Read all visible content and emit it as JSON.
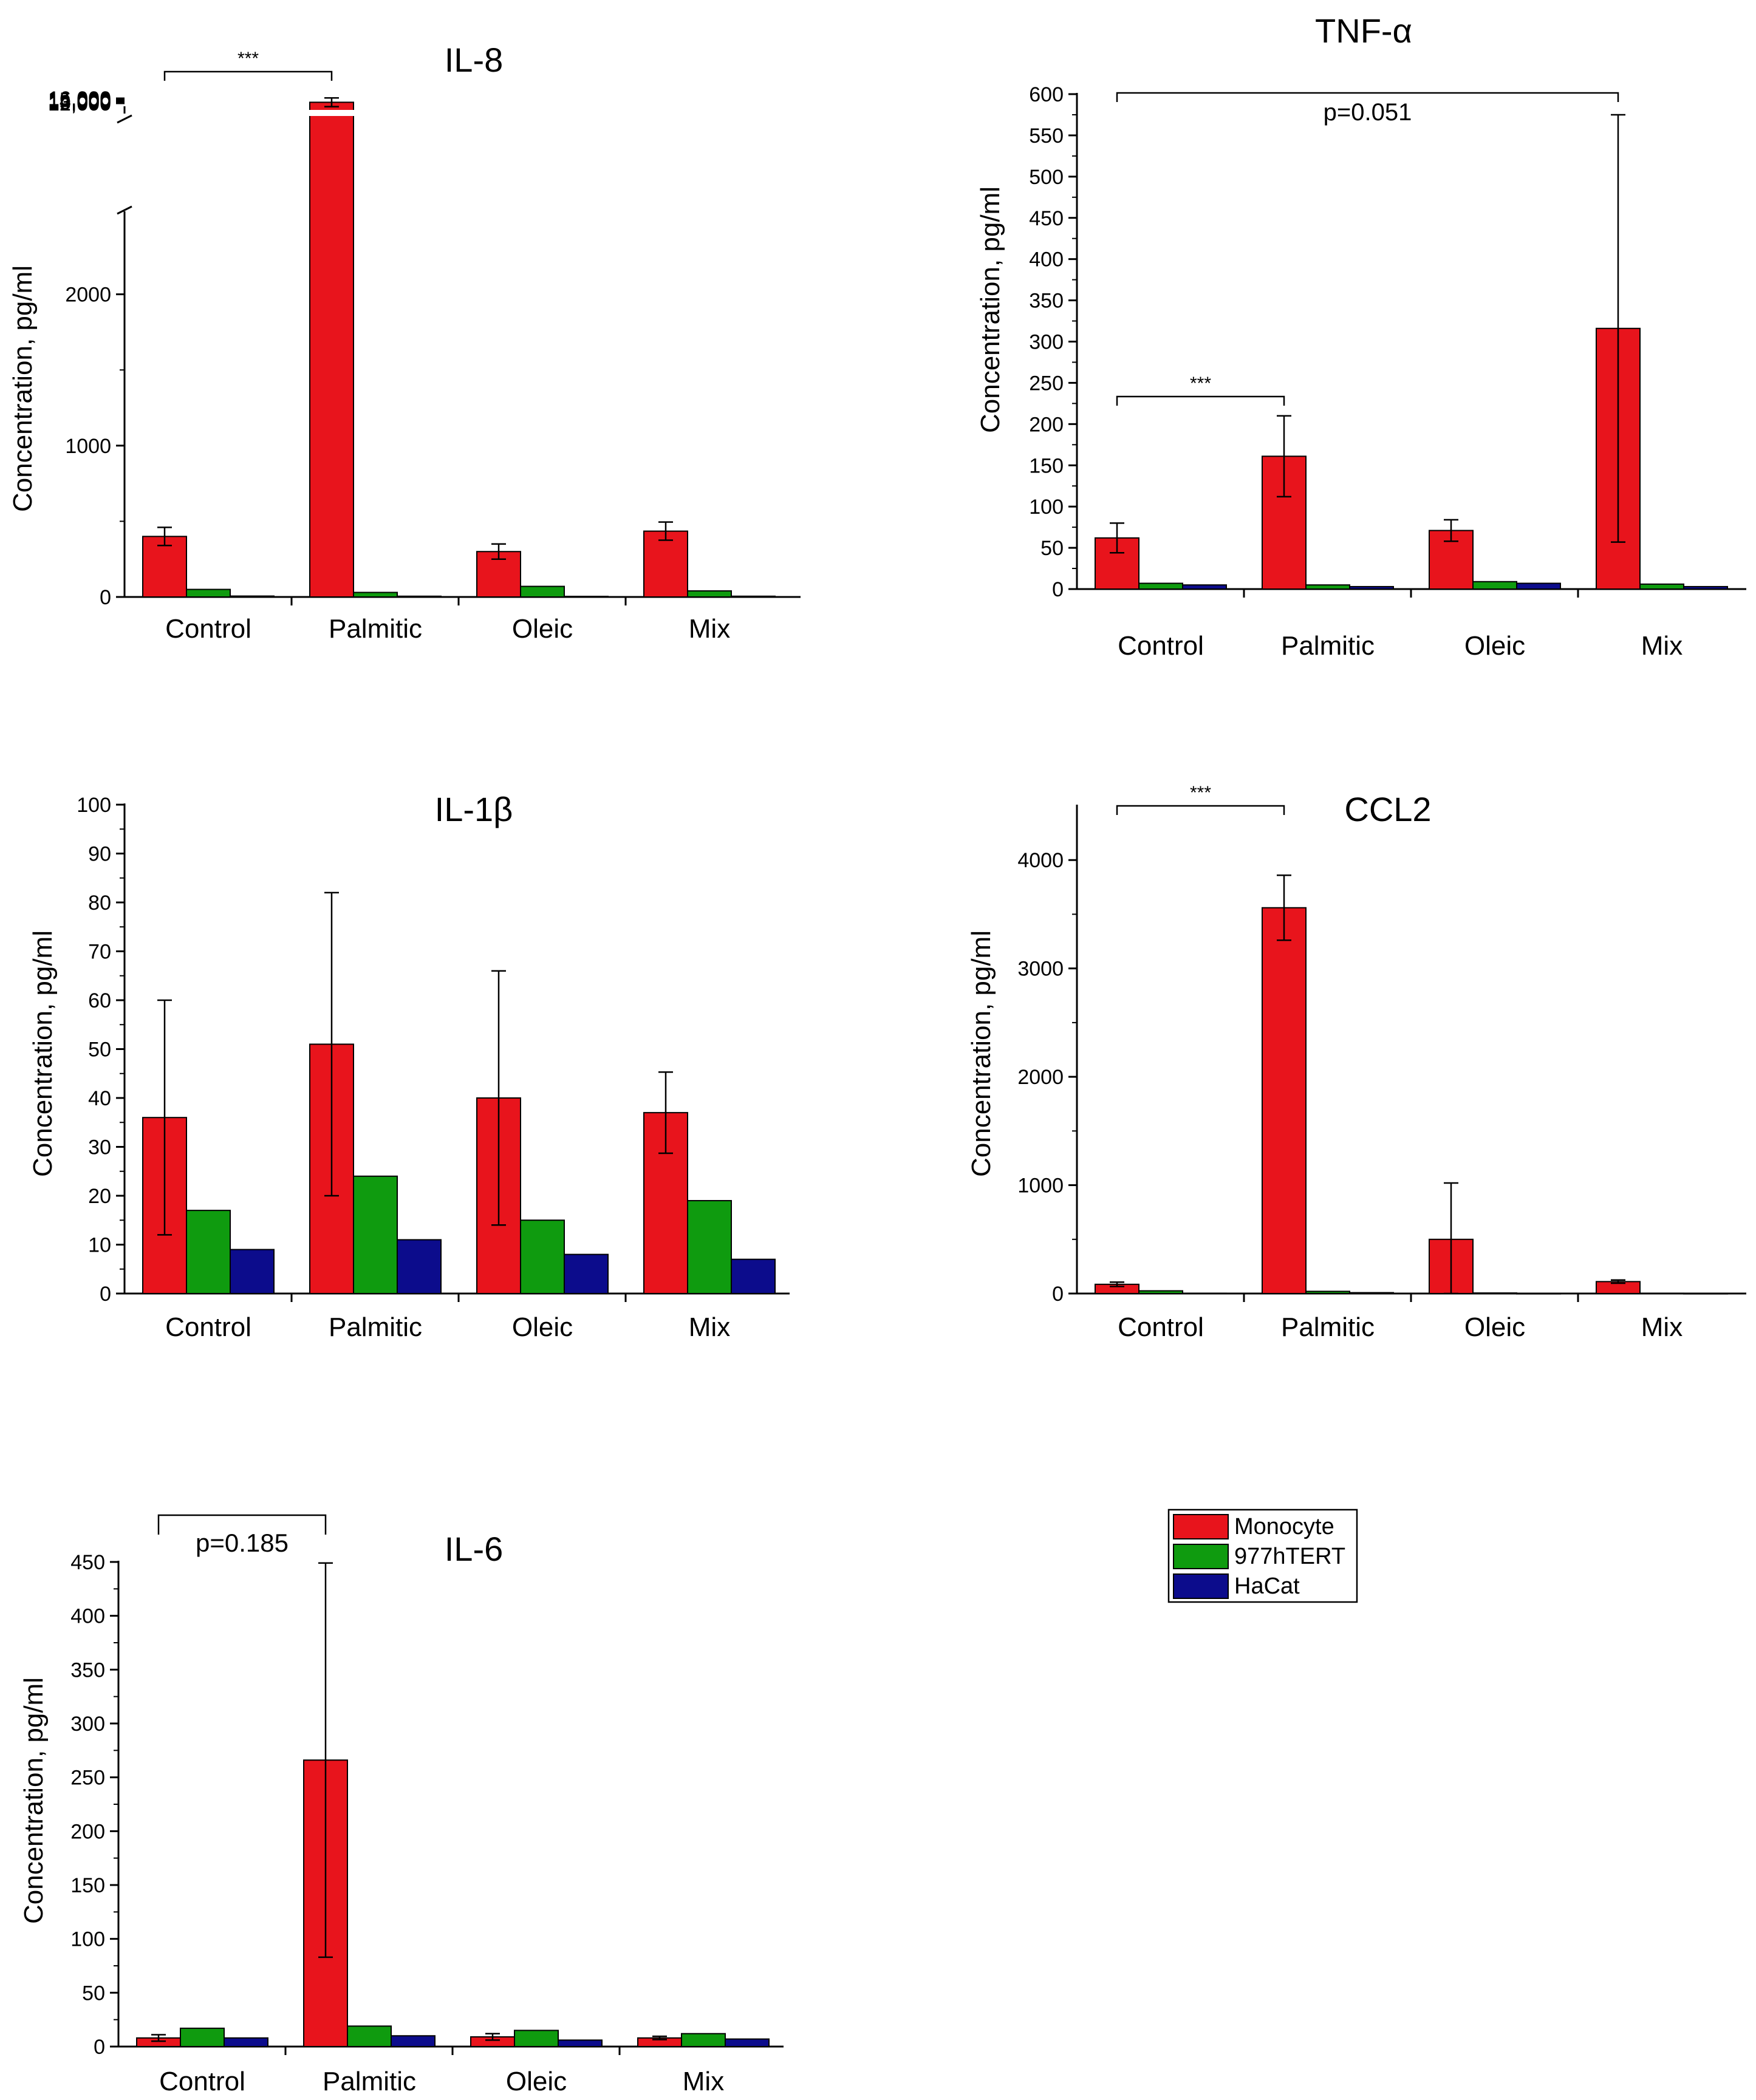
{
  "legend": {
    "items": [
      {
        "label": "Monocyte",
        "color": "#e8141c"
      },
      {
        "label": "977hTERT",
        "color": "#0f9b0f"
      },
      {
        "label": "HaCat",
        "color": "#0c0c8c"
      }
    ]
  },
  "chart_data": [
    {
      "type": "bar",
      "title": "IL-8",
      "ylabel": "Concentration, pg/ml",
      "categories": [
        "Control",
        "Palmitic",
        "Oleic",
        "Mix"
      ],
      "series": [
        {
          "name": "Monocyte",
          "values": [
            400,
            12800,
            300,
            435
          ],
          "errors": [
            60,
            3600,
            50,
            60
          ]
        },
        {
          "name": "977hTERT",
          "values": [
            50,
            30,
            70,
            40
          ]
        },
        {
          "name": "HaCat",
          "values": [
            6,
            5,
            4,
            5
          ]
        }
      ],
      "broken_axis": true,
      "ylim_lower": [
        0,
        2500
      ],
      "ylim_upper": [
        11000,
        17000
      ],
      "yticks_lower": [
        0,
        1000,
        2000
      ],
      "yticks_upper": [
        12000,
        13000,
        14000,
        15000,
        16000
      ],
      "ytick_labels_lower": [
        "0",
        "1000",
        "2000"
      ],
      "ytick_labels_upper": [
        "12,000",
        "13,000",
        "14,000",
        "15,000",
        "16,000"
      ],
      "significance": [
        {
          "from": "Control",
          "to": "Palmitic",
          "label": "***"
        }
      ]
    },
    {
      "type": "bar",
      "title": "TNF-α",
      "ylabel": "Concentration, pg/ml",
      "categories": [
        "Control",
        "Palmitic",
        "Oleic",
        "Mix"
      ],
      "series": [
        {
          "name": "Monocyte",
          "values": [
            62,
            161,
            71,
            316
          ],
          "errors": [
            18,
            49,
            13,
            259
          ]
        },
        {
          "name": "977hTERT",
          "values": [
            7,
            5,
            9,
            6
          ]
        },
        {
          "name": "HaCat",
          "values": [
            5,
            3,
            7,
            3
          ]
        }
      ],
      "ylim": [
        0,
        600
      ],
      "yticks": [
        0,
        50,
        100,
        150,
        200,
        250,
        300,
        350,
        400,
        450,
        500,
        550,
        600
      ],
      "significance": [
        {
          "from": "Control",
          "to": "Mix",
          "label": "p=0.051"
        },
        {
          "from": "Control",
          "to": "Palmitic",
          "label": "***"
        }
      ]
    },
    {
      "type": "bar",
      "title": "IL-1β",
      "ylabel": "Concentration, pg/ml",
      "categories": [
        "Control",
        "Palmitic",
        "Oleic",
        "Mix"
      ],
      "series": [
        {
          "name": "Monocyte",
          "values": [
            36,
            51,
            40,
            37
          ],
          "errors": [
            24,
            31,
            26,
            8.3
          ]
        },
        {
          "name": "977hTERT",
          "values": [
            17,
            24,
            15,
            19
          ]
        },
        {
          "name": "HaCat",
          "values": [
            9,
            11,
            8,
            7
          ]
        }
      ],
      "ylim": [
        0,
        100
      ],
      "yticks": [
        0,
        10,
        20,
        30,
        40,
        50,
        60,
        70,
        80,
        90,
        100
      ],
      "significance": []
    },
    {
      "type": "bar",
      "title": "CCL2",
      "ylabel": "Concentration, pg/ml",
      "categories": [
        "Control",
        "Palmitic",
        "Oleic",
        "Mix"
      ],
      "series": [
        {
          "name": "Monocyte",
          "values": [
            85,
            3560,
            500,
            110
          ],
          "errors": [
            20,
            300,
            520,
            15
          ]
        },
        {
          "name": "977hTERT",
          "values": [
            25,
            20,
            5,
            3
          ]
        },
        {
          "name": "HaCat",
          "values": [
            3,
            8,
            2,
            2
          ]
        }
      ],
      "ylim": [
        0,
        4500
      ],
      "yticks": [
        0,
        1000,
        2000,
        3000,
        4000
      ],
      "significance": [
        {
          "from": "Control",
          "to": "Palmitic",
          "label": "***"
        }
      ]
    },
    {
      "type": "bar",
      "title": "IL-6",
      "ylabel": "Concentration, pg/ml",
      "categories": [
        "Control",
        "Palmitic",
        "Oleic",
        "Mix"
      ],
      "series": [
        {
          "name": "Monocyte",
          "values": [
            8,
            266,
            9,
            8
          ],
          "errors": [
            3,
            183,
            3,
            1.5
          ]
        },
        {
          "name": "977hTERT",
          "values": [
            17,
            19,
            15,
            12
          ]
        },
        {
          "name": "HaCat",
          "values": [
            8,
            10,
            6,
            7
          ]
        }
      ],
      "ylim": [
        0,
        450
      ],
      "yticks": [
        0,
        50,
        100,
        150,
        200,
        250,
        300,
        350,
        400,
        450
      ],
      "significance": [
        {
          "from": "Control",
          "to": "Palmitic",
          "label": "p=0.185"
        }
      ]
    }
  ]
}
